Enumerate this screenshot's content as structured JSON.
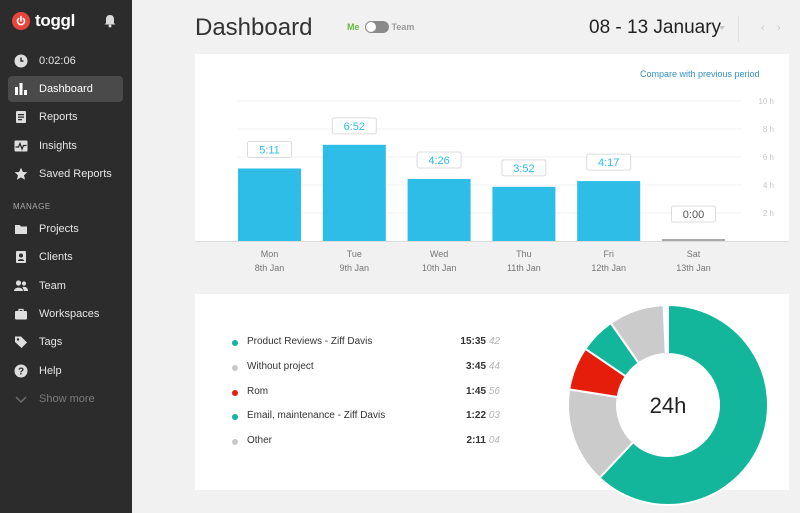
{
  "sidebar": {
    "brand": "toggl",
    "timer": "0:02:06",
    "items": [
      {
        "label": "Dashboard"
      },
      {
        "label": "Reports"
      },
      {
        "label": "Insights"
      },
      {
        "label": "Saved Reports"
      }
    ],
    "manage_label": "MANAGE",
    "manage_items": [
      {
        "label": "Projects"
      },
      {
        "label": "Clients"
      },
      {
        "label": "Team"
      },
      {
        "label": "Workspaces"
      },
      {
        "label": "Tags"
      },
      {
        "label": "Help"
      },
      {
        "label": "Show more"
      }
    ]
  },
  "header": {
    "title": "Dashboard",
    "toggle_me": "Me",
    "toggle_team": "Team",
    "date_range": "08 - 13 January",
    "prev": "‹",
    "next": "›"
  },
  "chart_card": {
    "compare_link": "Compare with previous period"
  },
  "chart_data": {
    "type": "bar",
    "categories": [
      "Mon",
      "Tue",
      "Wed",
      "Thu",
      "Fri",
      "Sat"
    ],
    "dates": [
      "8th Jan",
      "9th Jan",
      "10th Jan",
      "11th Jan",
      "12th Jan",
      "13th Jan"
    ],
    "labels": [
      "5:11",
      "6:52",
      "4:26",
      "3:52",
      "4:17",
      "0:00"
    ],
    "values": [
      5.18,
      6.87,
      4.43,
      3.87,
      4.28,
      0
    ],
    "ylim": [
      0,
      10
    ],
    "yticks": [
      "2 h",
      "4 h",
      "6 h",
      "8 h",
      "10 h"
    ],
    "ytick_values": [
      2,
      4,
      6,
      8,
      10
    ],
    "grid": true,
    "bar_color": "#2dbde6",
    "empty_color": "#a9a9a9"
  },
  "projects": {
    "items": [
      {
        "name": "Product Reviews - Ziff Davis",
        "time": "15:35",
        "sec": "42",
        "color": "#13b69b"
      },
      {
        "name": "Without project",
        "time": "3:45",
        "sec": "44",
        "color": "#c8c8c8"
      },
      {
        "name": "Rom",
        "time": "1:45",
        "sec": "56",
        "color": "#e51d0b"
      },
      {
        "name": "Email, maintenance - Ziff Davis",
        "time": "1:22",
        "sec": "03",
        "color": "#13b69b"
      },
      {
        "name": "Other",
        "time": "2:11",
        "sec": "04",
        "color": "#c8c8c8"
      }
    ],
    "total": "24h",
    "donut": [
      {
        "fraction": 0.62,
        "color": "#13b69b"
      },
      {
        "fraction": 0.155,
        "color": "#cbcbcb"
      },
      {
        "fraction": 0.07,
        "color": "#e51d0b"
      },
      {
        "fraction": 0.058,
        "color": "#13b69b"
      },
      {
        "fraction": 0.09,
        "color": "#cbcbcb"
      }
    ]
  }
}
